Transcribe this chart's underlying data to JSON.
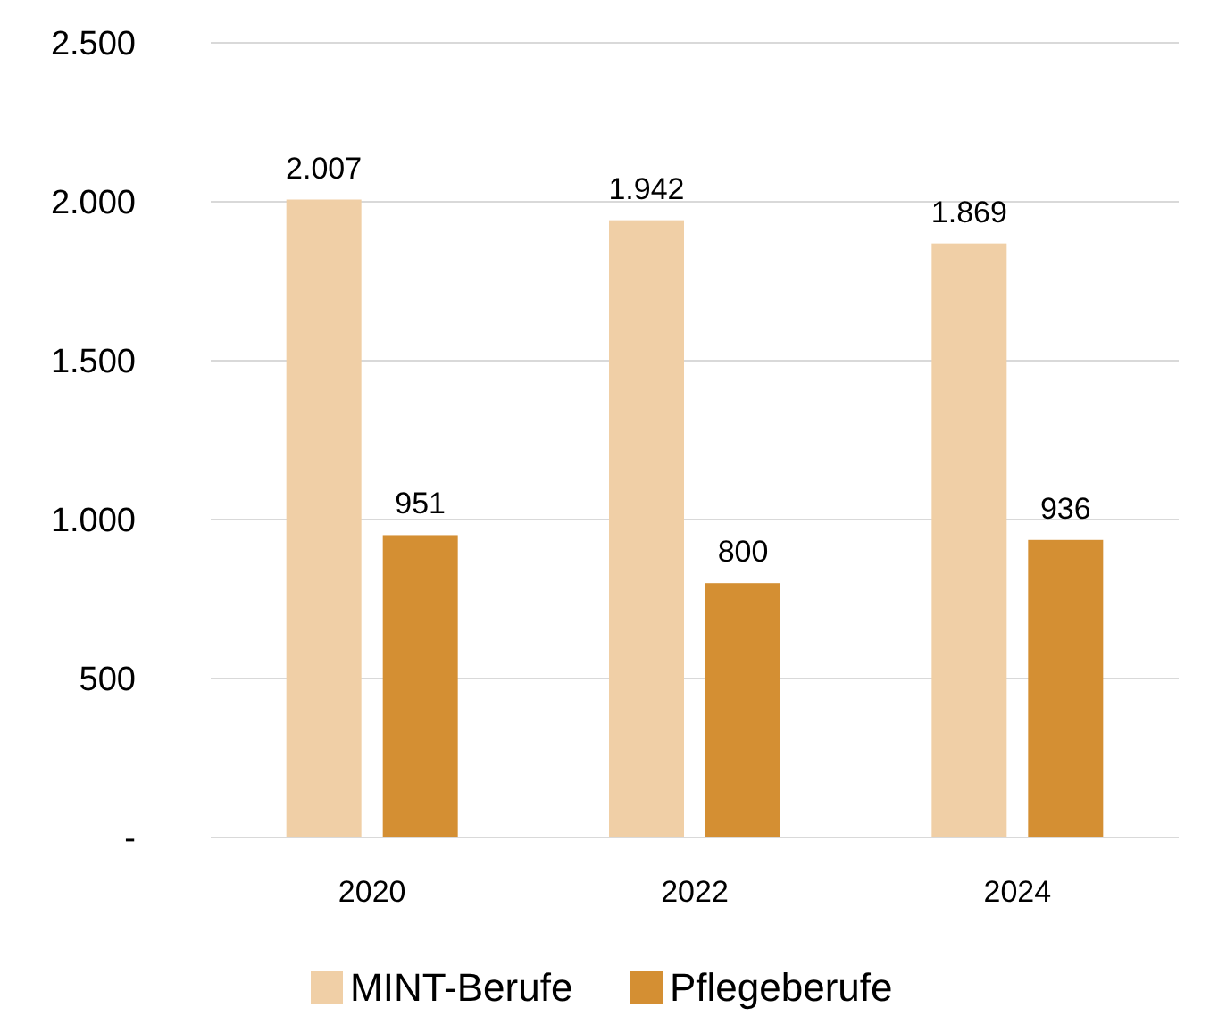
{
  "chart_data": {
    "type": "bar",
    "categories": [
      "2020",
      "2022",
      "2024"
    ],
    "series": [
      {
        "name": "MINT-Berufe",
        "color": "#f0cfa6",
        "values": [
          2007,
          1942,
          1869
        ],
        "value_labels": [
          "2.007",
          "1.942",
          "1.869"
        ]
      },
      {
        "name": "Pflegeberufe",
        "color": "#d48f33",
        "values": [
          951,
          800,
          936
        ],
        "value_labels": [
          "951",
          "800",
          "936"
        ]
      }
    ],
    "ylim": [
      0,
      2500
    ],
    "yticks": [
      {
        "value": 0,
        "label": "-"
      },
      {
        "value": 500,
        "label": "500"
      },
      {
        "value": 1000,
        "label": "1.000"
      },
      {
        "value": 1500,
        "label": "1.500"
      },
      {
        "value": 2000,
        "label": "2.000"
      },
      {
        "value": 2500,
        "label": "2.500"
      }
    ],
    "grid": "y",
    "legend": "bottom"
  }
}
